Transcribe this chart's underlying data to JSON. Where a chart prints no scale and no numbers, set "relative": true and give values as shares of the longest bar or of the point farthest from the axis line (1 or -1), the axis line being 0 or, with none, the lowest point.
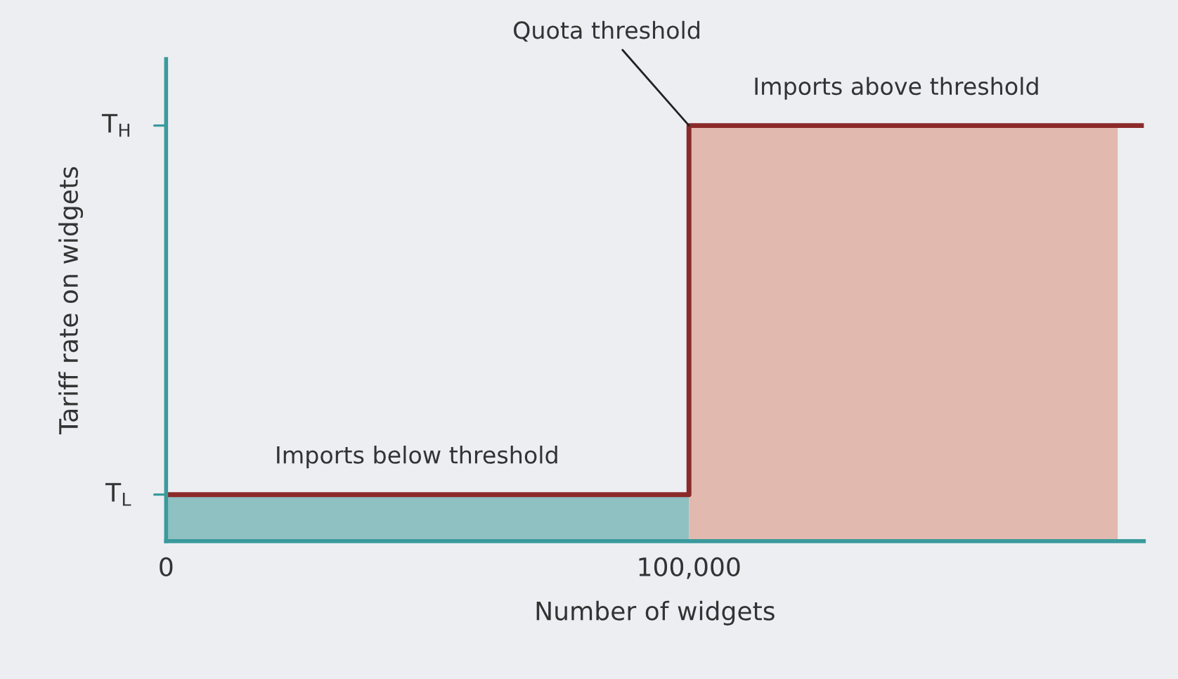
{
  "chart_data": {
    "type": "step",
    "relative": true,
    "xlabel": "Number of widgets",
    "ylabel": "Tariff rate on widgets",
    "xlim": [
      0,
      187000
    ],
    "xticks": [
      0,
      {
        "value": 100000,
        "label": "100,000"
      }
    ],
    "series": [
      {
        "type": "area",
        "color": "#8fc0c2",
        "x": [
          0,
          100000
        ],
        "values": [
          0.112,
          0.112
        ]
      },
      {
        "type": "area",
        "color": "#e1b9ae",
        "x": [
          100000,
          182000
        ],
        "values": [
          1,
          1
        ]
      },
      {
        "color": "#8b2a2a",
        "x": [
          0,
          100000,
          187000
        ],
        "values": [
          0.112,
          1,
          1
        ]
      }
    ],
    "annotations": [
      {
        "text": "Quota threshold",
        "x": 100000,
        "y": 1
      },
      "Imports above threshold",
      "Imports below threshold",
      "T$_{L}$",
      "T$_{H}$"
    ],
    "grid": false,
    "legend": false
  }
}
